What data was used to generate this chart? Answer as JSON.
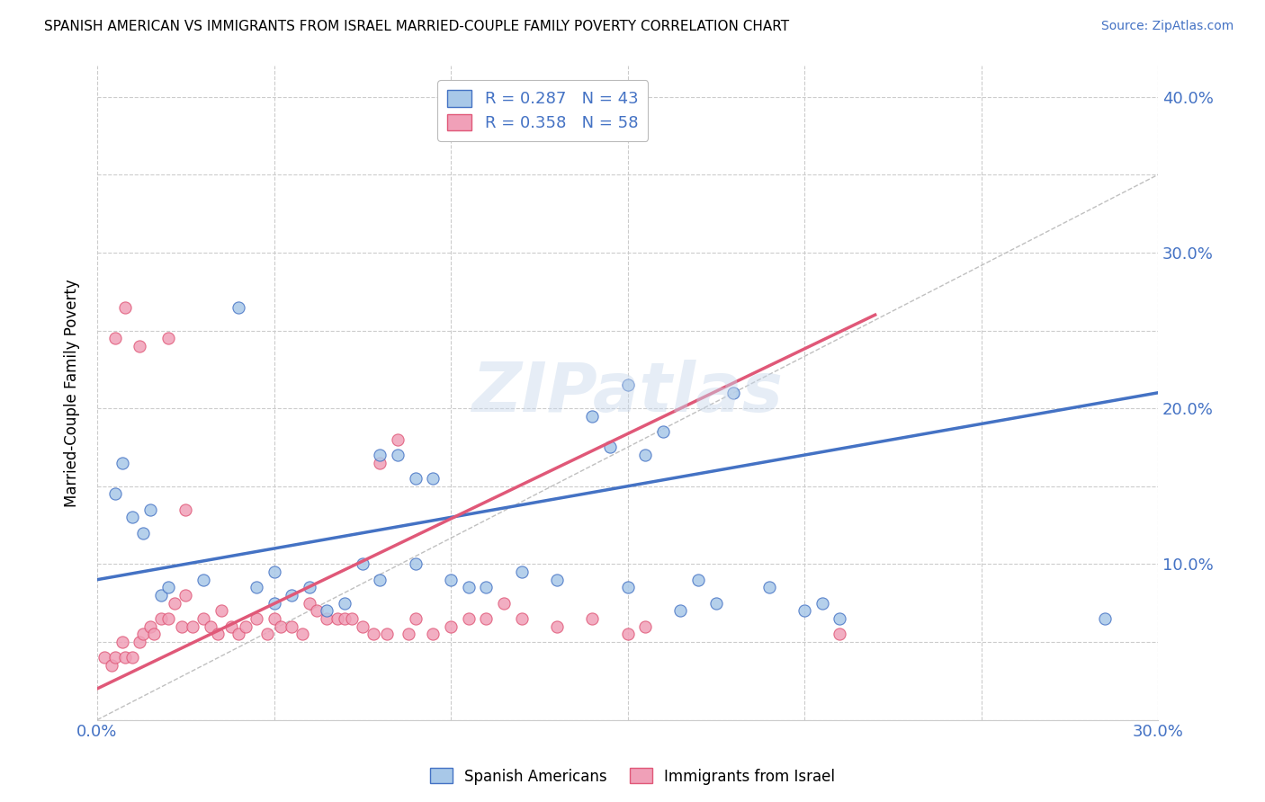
{
  "title": "SPANISH AMERICAN VS IMMIGRANTS FROM ISRAEL MARRIED-COUPLE FAMILY POVERTY CORRELATION CHART",
  "source": "Source: ZipAtlas.com",
  "ylabel": "Married-Couple Family Poverty",
  "xlim": [
    0.0,
    0.3
  ],
  "ylim": [
    0.0,
    0.42
  ],
  "x_ticks": [
    0.0,
    0.05,
    0.1,
    0.15,
    0.2,
    0.25,
    0.3
  ],
  "x_tick_labels": [
    "0.0%",
    "",
    "",
    "",
    "",
    "",
    "30.0%"
  ],
  "y_ticks": [
    0.0,
    0.05,
    0.1,
    0.15,
    0.2,
    0.25,
    0.3,
    0.35,
    0.4
  ],
  "y_tick_labels_right": [
    "",
    "",
    "10.0%",
    "",
    "20.0%",
    "",
    "30.0%",
    "",
    "40.0%"
  ],
  "legend_r1": "R = 0.287",
  "legend_n1": "N = 43",
  "legend_r2": "R = 0.358",
  "legend_n2": "N = 58",
  "color_blue": "#A8C8E8",
  "color_pink": "#F0A0B8",
  "color_line_blue": "#4472C4",
  "color_line_pink": "#E05878",
  "watermark": "ZIPatlas",
  "blue_line_x0": 0.0,
  "blue_line_y0": 0.09,
  "blue_line_x1": 0.3,
  "blue_line_y1": 0.21,
  "pink_line_x0": 0.0,
  "pink_line_y0": 0.02,
  "pink_line_x1": 0.22,
  "pink_line_y1": 0.26,
  "dash_line_x0": 0.0,
  "dash_line_y0": 0.0,
  "dash_line_x1": 0.3,
  "dash_line_y1": 0.35,
  "blue_scatter_x": [
    0.005,
    0.007,
    0.01,
    0.013,
    0.015,
    0.018,
    0.02,
    0.03,
    0.04,
    0.045,
    0.05,
    0.055,
    0.06,
    0.065,
    0.07,
    0.075,
    0.08,
    0.085,
    0.09,
    0.095,
    0.1,
    0.105,
    0.11,
    0.12,
    0.13,
    0.14,
    0.145,
    0.15,
    0.155,
    0.16,
    0.165,
    0.17,
    0.175,
    0.18,
    0.19,
    0.2,
    0.205,
    0.21,
    0.05,
    0.08,
    0.09,
    0.285,
    0.15
  ],
  "blue_scatter_y": [
    0.145,
    0.165,
    0.13,
    0.12,
    0.135,
    0.08,
    0.085,
    0.09,
    0.265,
    0.085,
    0.075,
    0.08,
    0.085,
    0.07,
    0.075,
    0.1,
    0.17,
    0.17,
    0.155,
    0.155,
    0.09,
    0.085,
    0.085,
    0.095,
    0.09,
    0.195,
    0.175,
    0.085,
    0.17,
    0.185,
    0.07,
    0.09,
    0.075,
    0.21,
    0.085,
    0.07,
    0.075,
    0.065,
    0.095,
    0.09,
    0.1,
    0.065,
    0.215
  ],
  "pink_scatter_x": [
    0.002,
    0.004,
    0.005,
    0.007,
    0.008,
    0.01,
    0.012,
    0.013,
    0.015,
    0.016,
    0.018,
    0.02,
    0.022,
    0.024,
    0.025,
    0.027,
    0.03,
    0.032,
    0.034,
    0.035,
    0.038,
    0.04,
    0.042,
    0.045,
    0.048,
    0.05,
    0.052,
    0.055,
    0.058,
    0.06,
    0.062,
    0.065,
    0.068,
    0.07,
    0.072,
    0.075,
    0.078,
    0.08,
    0.082,
    0.085,
    0.088,
    0.09,
    0.095,
    0.1,
    0.105,
    0.11,
    0.115,
    0.12,
    0.13,
    0.14,
    0.15,
    0.155,
    0.005,
    0.008,
    0.012,
    0.02,
    0.025,
    0.21
  ],
  "pink_scatter_y": [
    0.04,
    0.035,
    0.04,
    0.05,
    0.04,
    0.04,
    0.05,
    0.055,
    0.06,
    0.055,
    0.065,
    0.065,
    0.075,
    0.06,
    0.08,
    0.06,
    0.065,
    0.06,
    0.055,
    0.07,
    0.06,
    0.055,
    0.06,
    0.065,
    0.055,
    0.065,
    0.06,
    0.06,
    0.055,
    0.075,
    0.07,
    0.065,
    0.065,
    0.065,
    0.065,
    0.06,
    0.055,
    0.165,
    0.055,
    0.18,
    0.055,
    0.065,
    0.055,
    0.06,
    0.065,
    0.065,
    0.075,
    0.065,
    0.06,
    0.065,
    0.055,
    0.06,
    0.245,
    0.265,
    0.24,
    0.245,
    0.135,
    0.055
  ]
}
